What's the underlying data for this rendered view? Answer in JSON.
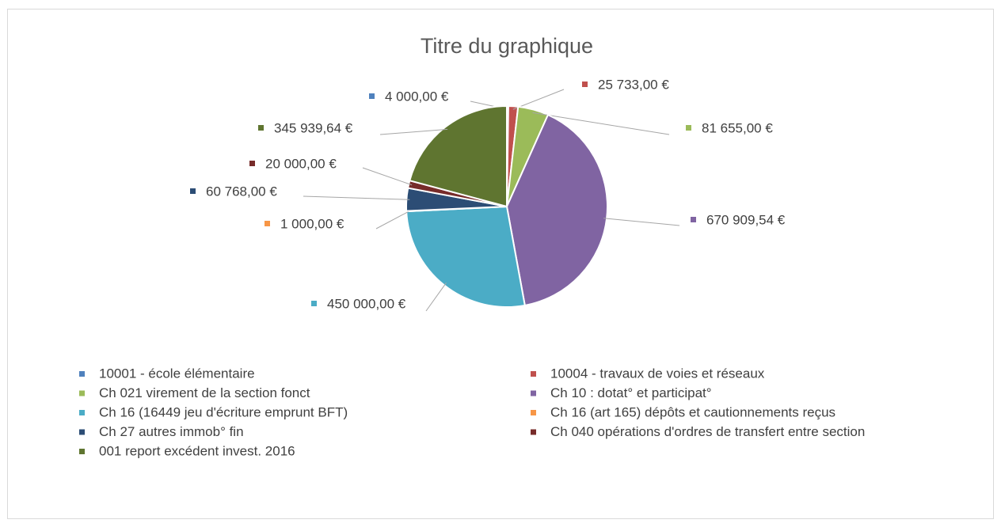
{
  "chart_data": {
    "type": "pie",
    "title": "Titre du graphique",
    "categories": [
      "10001 - école élémentaire",
      "10004 - travaux de voies et réseaux",
      "Ch 021 virement de la section fonct",
      "Ch 10 : dotat° et participat°",
      "Ch 16 (16449 jeu d'écriture emprunt BFT)",
      "Ch 16 (art 165) dépôts et cautionnements reçus",
      "Ch 27 autres immob° fin",
      "Ch 040 opérations d'ordres de transfert entre section",
      "001 report excédent invest. 2016"
    ],
    "values": [
      4000,
      25733,
      81655,
      670909.54,
      450000,
      1000,
      60768,
      20000,
      345939.64
    ],
    "value_labels": [
      "4 000,00 €",
      "25 733,00 €",
      "81 655,00 €",
      "670 909,54 €",
      "450 000,00 €",
      "1 000,00 €",
      "60 768,00 €",
      "20 000,00 €",
      "345 939,64 €"
    ],
    "colors": [
      "#4f81bd",
      "#c0504d",
      "#9bbb59",
      "#8064a2",
      "#4bacc6",
      "#f79646",
      "#2c4d75",
      "#772c2a",
      "#5f7530"
    ]
  }
}
